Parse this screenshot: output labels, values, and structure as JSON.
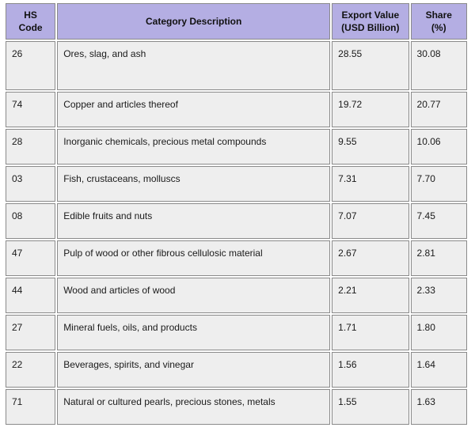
{
  "table": {
    "headers": [
      [
        "HS",
        "Code"
      ],
      [
        "Category Description"
      ],
      [
        "Export Value",
        "(USD Billion)"
      ],
      [
        "Share",
        "(%)"
      ]
    ],
    "rows": [
      [
        "26",
        "Ores, slag, and ash",
        "28.55",
        "30.08"
      ],
      [
        "74",
        "Copper and articles thereof",
        "19.72",
        "20.77"
      ],
      [
        "28",
        "Inorganic chemicals, precious metal compounds",
        "9.55",
        "10.06"
      ],
      [
        "03",
        "Fish, crustaceans, molluscs",
        "7.31",
        "7.70"
      ],
      [
        "08",
        "Edible fruits and nuts",
        "7.07",
        "7.45"
      ],
      [
        "47",
        "Pulp of wood or other fibrous cellulosic material",
        "2.67",
        "2.81"
      ],
      [
        "44",
        "Wood and articles of wood",
        "2.21",
        "2.33"
      ],
      [
        "27",
        "Mineral fuels, oils, and products",
        "1.71",
        "1.80"
      ],
      [
        "22",
        "Beverages, spirits, and vinegar",
        "1.56",
        "1.64"
      ],
      [
        "71",
        "Natural or cultured pearls, precious stones, metals",
        "1.55",
        "1.63"
      ]
    ]
  },
  "colors": {
    "header_bg": "#b4aee3",
    "cell_bg": "#eeeeee",
    "border": "#8a8a8a"
  }
}
